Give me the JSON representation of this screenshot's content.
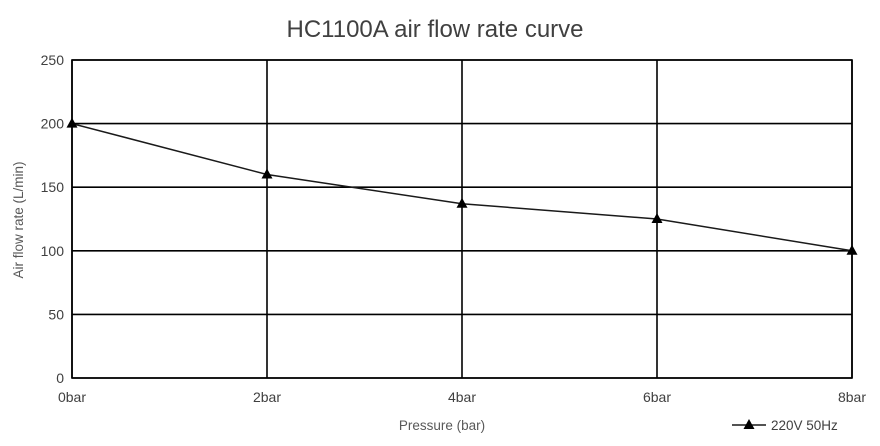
{
  "chart_data": {
    "type": "line",
    "title": "HC1100A air flow rate curve",
    "xlabel": "Pressure (bar)",
    "ylabel": "Air flow rate (L/min)",
    "categories": [
      "0bar",
      "2bar",
      "4bar",
      "6bar",
      "8bar"
    ],
    "x": [
      0,
      2,
      4,
      6,
      8
    ],
    "ylim": [
      0,
      250
    ],
    "yticks": [
      0,
      50,
      100,
      150,
      200,
      250
    ],
    "grid": true,
    "legend_position": "bottom-right",
    "series": [
      {
        "name": "220V 50Hz",
        "values": [
          200,
          160,
          137,
          125,
          100
        ],
        "color": "#000000",
        "marker": "triangle"
      }
    ]
  }
}
